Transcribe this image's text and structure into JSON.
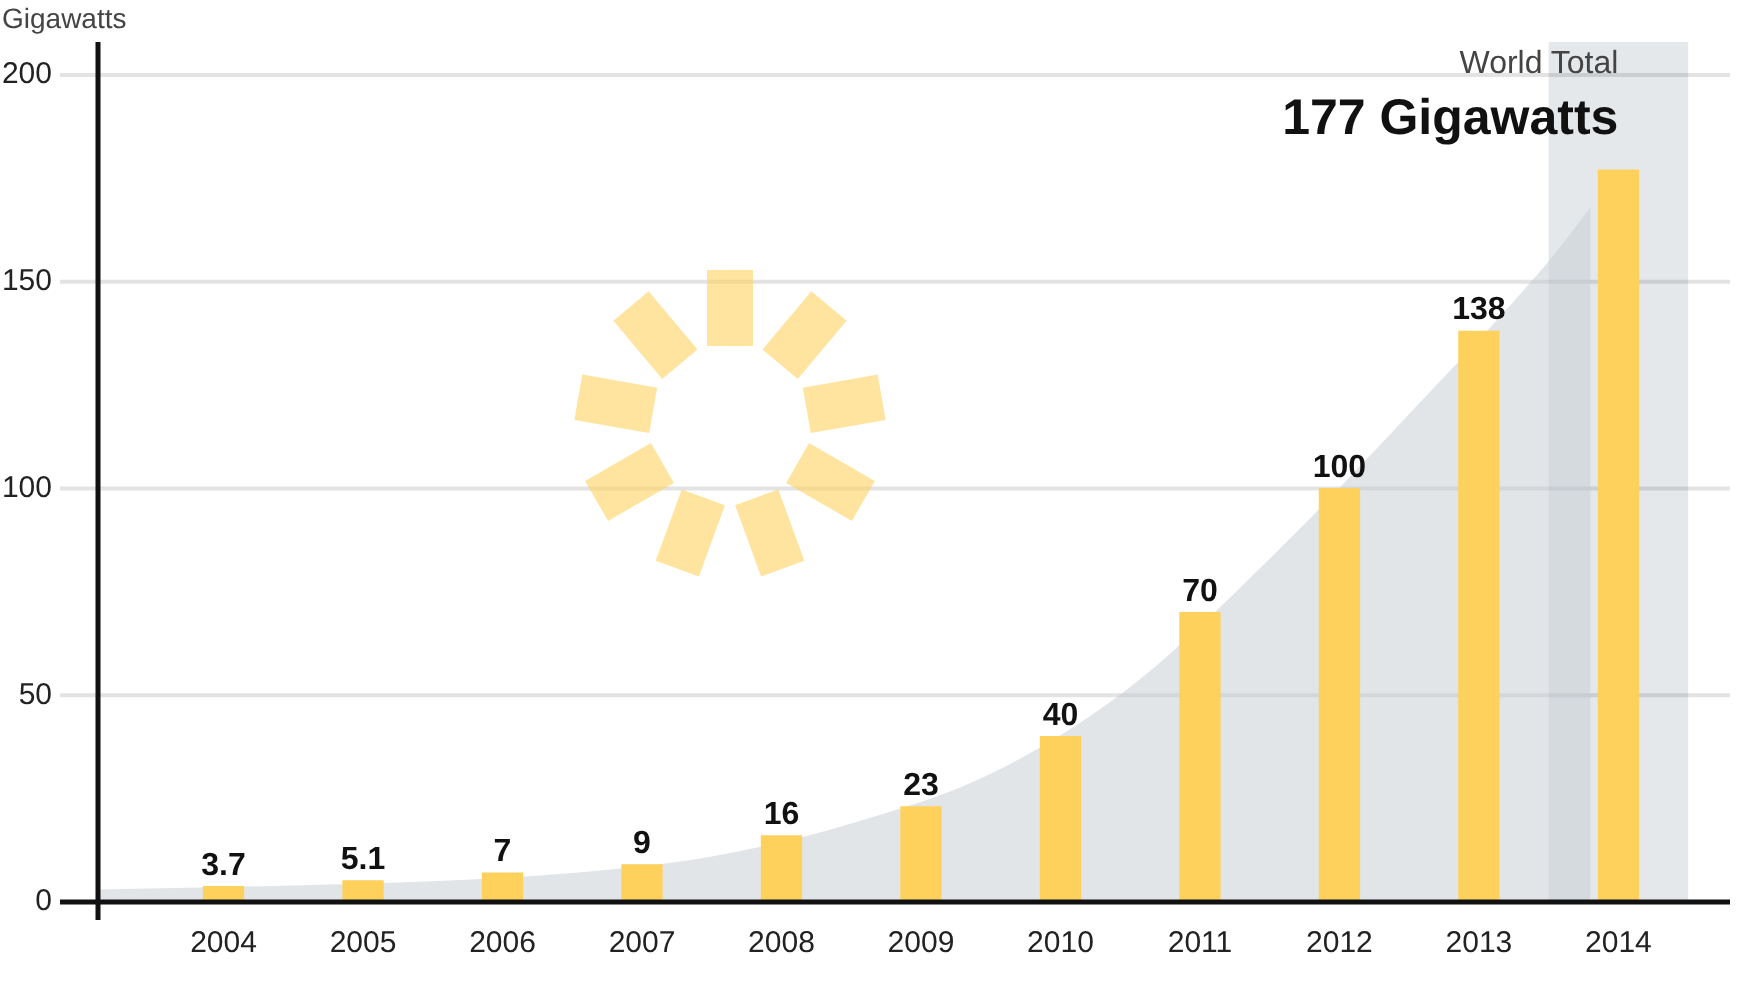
{
  "chart_data": {
    "type": "bar",
    "ylabel": "Gigawatts",
    "annotations": [
      "World Total",
      "177 Gigawatts"
    ],
    "x": [
      2004,
      2005,
      2006,
      2007,
      2008,
      2009,
      2010,
      2011,
      2012,
      2013,
      2014
    ],
    "series": [
      {
        "color": "#fed15c",
        "values": [
          3.7,
          5.1,
          7,
          9,
          16,
          23,
          40,
          70,
          100,
          138,
          177
        ],
        "value_labels": [
          "3.7",
          "5.1",
          "7",
          "9",
          "16",
          "23",
          "40",
          "70",
          "100",
          "138",
          null
        ]
      },
      {
        "type": "area",
        "color": "#e1e5e8",
        "x": [
          2003.1,
          2004.5,
          2005.5,
          2006.5,
          2007.5,
          2008.5,
          2009.5,
          2010.5,
          2011.5,
          2012.5,
          2013.5,
          2013.8
        ],
        "values": [
          3,
          4,
          5,
          7,
          11,
          19,
          31,
          52,
          83,
          118,
          155,
          168
        ]
      }
    ],
    "xlim": [
      2003.1,
      2014.8
    ],
    "xticks": [
      2004,
      2005,
      2006,
      2007,
      2008,
      2009,
      2010,
      2011,
      2012,
      2013,
      2014
    ],
    "ylim": [
      0,
      208
    ],
    "yticks": [
      0,
      50,
      100,
      150,
      200
    ],
    "grid": "y",
    "legend": false,
    "bands": [
      {
        "axis": "x",
        "from": 2013.5,
        "to": 2014.5,
        "color": "#e4e8eb"
      }
    ]
  }
}
